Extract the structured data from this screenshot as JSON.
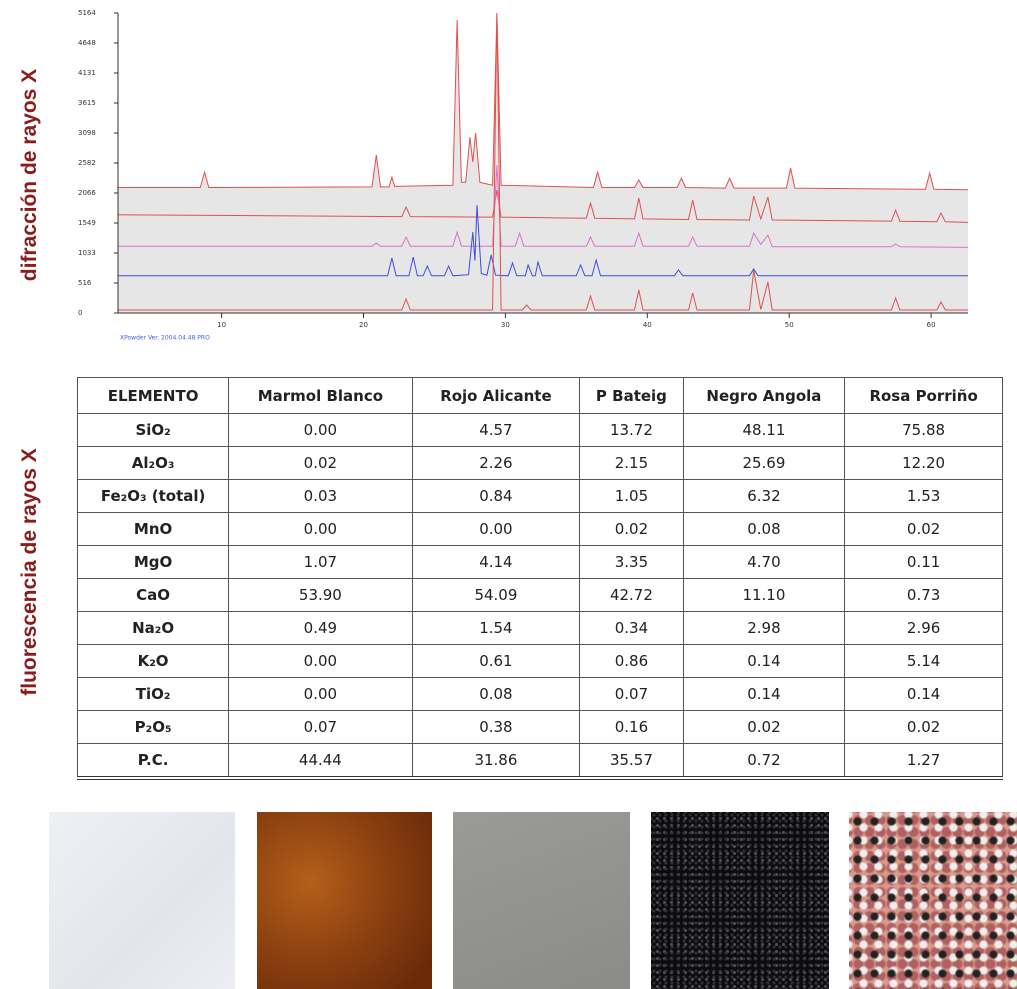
{
  "chart_data": {
    "type": "line",
    "ylabel": "difracción de rayos X",
    "note": "XPowder Ver. 2004.04.48 PRO",
    "xlim": [
      2.7,
      62.6
    ],
    "ylim": [
      0,
      5164
    ],
    "xticks": [
      10,
      20,
      30,
      40,
      50,
      60
    ],
    "yticks": [
      0,
      516,
      1033,
      1549,
      2066,
      2582,
      3098,
      3615,
      4131,
      4648,
      5164
    ],
    "area_color": "#e6e6e6",
    "series": [
      {
        "color": "#e05050",
        "x": [
          2.7,
          8.5,
          8.8,
          9.1,
          20.6,
          20.9,
          21.2,
          21.8,
          22.0,
          22.2,
          26.3,
          26.6,
          26.9,
          27.2,
          27.5,
          27.7,
          27.9,
          28.2,
          29.1,
          29.4,
          29.7,
          36.2,
          36.5,
          36.8,
          39.1,
          39.4,
          39.7,
          42.1,
          42.4,
          42.7,
          45.5,
          45.8,
          46.1,
          49.8,
          50.1,
          50.4,
          59.6,
          59.9,
          60.2,
          62.6
        ],
        "values": [
          2160,
          2160,
          2425,
          2160,
          2170,
          2718,
          2170,
          2170,
          2340,
          2180,
          2200,
          5040,
          2250,
          2250,
          3027,
          2600,
          3096,
          2250,
          2200,
          5150,
          2200,
          2160,
          2425,
          2160,
          2160,
          2290,
          2160,
          2160,
          2320,
          2160,
          2150,
          2320,
          2150,
          2150,
          2494,
          2150,
          2130,
          2408,
          2130,
          2120
        ]
      },
      {
        "color": "#e05050",
        "x": [
          2.7,
          22.7,
          23.0,
          23.3,
          29.1,
          29.4,
          29.7,
          35.7,
          36.0,
          36.3,
          39.1,
          39.4,
          39.7,
          42.9,
          43.2,
          43.5,
          47.2,
          47.5,
          48.0,
          48.5,
          48.8,
          57.2,
          57.5,
          57.8,
          60.4,
          60.7,
          61.0,
          62.6
        ],
        "values": [
          1690,
          1660,
          1823,
          1660,
          1650,
          2116,
          1650,
          1630,
          1892,
          1630,
          1620,
          1978,
          1620,
          1610,
          1944,
          1610,
          1600,
          2012,
          1620,
          1995,
          1600,
          1580,
          1772,
          1580,
          1570,
          1720,
          1570,
          1560
        ]
      },
      {
        "color": "#e070d0",
        "x": [
          2.7,
          20.6,
          20.9,
          21.2,
          22.7,
          23.0,
          23.3,
          26.3,
          26.6,
          26.9,
          29.1,
          29.4,
          29.7,
          30.7,
          31.0,
          31.3,
          35.7,
          36.0,
          36.3,
          39.1,
          39.4,
          39.7,
          42.9,
          43.2,
          43.5,
          47.2,
          47.5,
          48.0,
          48.5,
          48.8,
          57.2,
          57.5,
          57.8,
          62.6
        ],
        "values": [
          1150,
          1150,
          1204,
          1150,
          1150,
          1307,
          1150,
          1150,
          1393,
          1150,
          1150,
          2546,
          1150,
          1150,
          1376,
          1150,
          1150,
          1307,
          1150,
          1150,
          1376,
          1150,
          1150,
          1307,
          1150,
          1150,
          1376,
          1180,
          1341,
          1140,
          1140,
          1187,
          1140,
          1130
        ]
      },
      {
        "color": "#3a4ee0",
        "x": [
          2.7,
          21.7,
          22.0,
          22.3,
          23.2,
          23.5,
          23.8,
          24.2,
          24.5,
          24.8,
          25.7,
          26.0,
          26.3,
          27.4,
          27.7,
          27.85,
          28.0,
          28.3,
          28.7,
          29.0,
          29.3,
          30.2,
          30.5,
          30.8,
          31.4,
          31.6,
          31.9,
          32.1,
          32.3,
          32.6,
          35.0,
          35.3,
          35.6,
          36.1,
          36.4,
          36.7,
          41.9,
          42.2,
          42.5,
          47.2,
          47.5,
          47.8,
          62.6
        ],
        "values": [
          640,
          640,
          946,
          640,
          640,
          963,
          640,
          640,
          808,
          640,
          640,
          808,
          640,
          660,
          1393,
          900,
          1858,
          680,
          650,
          998,
          650,
          640,
          860,
          640,
          640,
          826,
          640,
          640,
          877,
          640,
          640,
          826,
          640,
          640,
          912,
          640,
          640,
          740,
          640,
          640,
          757,
          640,
          640
        ]
      },
      {
        "color": "#e05050",
        "x": [
          2.7,
          22.7,
          23.0,
          23.3,
          29.1,
          29.4,
          29.7,
          31.2,
          31.5,
          31.8,
          35.7,
          36.0,
          36.3,
          39.1,
          39.4,
          39.7,
          42.9,
          43.2,
          43.5,
          47.2,
          47.5,
          48.0,
          48.5,
          48.8,
          57.2,
          57.5,
          57.8,
          60.4,
          60.7,
          61.0,
          62.6
        ],
        "values": [
          52,
          52,
          241,
          52,
          52,
          5164,
          52,
          52,
          138,
          52,
          52,
          292,
          52,
          52,
          396,
          52,
          52,
          344,
          52,
          52,
          740,
          60,
          533,
          52,
          52,
          258,
          52,
          52,
          189,
          52,
          52
        ]
      }
    ]
  },
  "table": {
    "label": "fluorescencia de rayos X",
    "header": [
      "ELEMENTO",
      "Marmol Blanco",
      "Rojo Alicante",
      "P Bateig",
      "Negro Angola",
      "Rosa Porriño"
    ],
    "rows": [
      [
        "SiO₂",
        "0.00",
        "4.57",
        "13.72",
        "48.11",
        "75.88"
      ],
      [
        "Al₂O₃",
        "0.02",
        "2.26",
        "2.15",
        "25.69",
        "12.20"
      ],
      [
        "Fe₂O₃ (total)",
        "0.03",
        "0.84",
        "1.05",
        "6.32",
        "1.53"
      ],
      [
        "MnO",
        "0.00",
        "0.00",
        "0.02",
        "0.08",
        "0.02"
      ],
      [
        "MgO",
        "1.07",
        "4.14",
        "3.35",
        "4.70",
        "0.11"
      ],
      [
        "CaO",
        "53.90",
        "54.09",
        "42.72",
        "11.10",
        "0.73"
      ],
      [
        "Na₂O",
        "0.49",
        "1.54",
        "0.34",
        "2.98",
        "2.96"
      ],
      [
        "K₂O",
        "0.00",
        "0.61",
        "0.86",
        "0.14",
        "5.14"
      ],
      [
        "TiO₂",
        "0.00",
        "0.08",
        "0.07",
        "0.14",
        "0.14"
      ],
      [
        "P₂O₅",
        "0.07",
        "0.38",
        "0.16",
        "0.02",
        "0.02"
      ],
      [
        "P.C.",
        "44.44",
        "31.86",
        "35.57",
        "0.72",
        "1.27"
      ]
    ]
  }
}
